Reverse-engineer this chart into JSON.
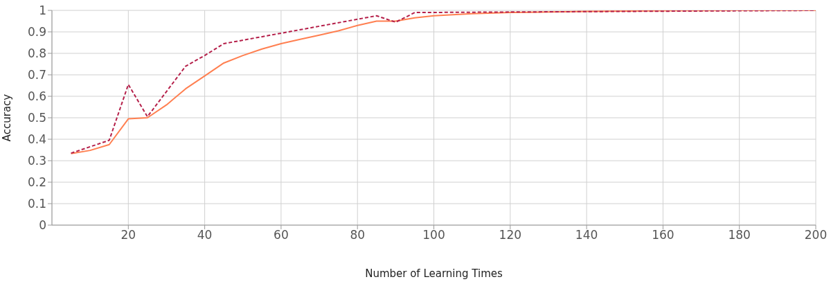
{
  "chart_data": {
    "type": "line",
    "xlabel": "Number of Learning Times",
    "ylabel": "Accuracy",
    "xlim": [
      0,
      200
    ],
    "xticks": [
      20,
      40,
      60,
      80,
      100,
      120,
      140,
      160,
      180,
      200
    ],
    "ylim": [
      0,
      1
    ],
    "yticks": [
      0,
      0.1,
      0.2,
      0.3,
      0.4,
      0.5,
      0.6,
      0.7,
      0.8,
      0.9,
      1
    ],
    "grid": true,
    "marker": "none",
    "series": [
      {
        "color": "#ff7f50",
        "line_style": "solid",
        "x": [
          5,
          10,
          15,
          20,
          25,
          30,
          35,
          40,
          45,
          50,
          55,
          60,
          65,
          70,
          75,
          80,
          85,
          90,
          95,
          100,
          110,
          120,
          140,
          160,
          180,
          200
        ],
        "values": [
          0.333,
          0.348,
          0.375,
          0.495,
          0.5,
          0.56,
          0.635,
          0.695,
          0.755,
          0.79,
          0.82,
          0.845,
          0.865,
          0.885,
          0.905,
          0.93,
          0.95,
          0.95,
          0.965,
          0.975,
          0.985,
          0.99,
          0.995,
          0.998,
          1,
          1
        ]
      },
      {
        "color": "#b5204a",
        "line_style": "dashed",
        "x": [
          5,
          15,
          20,
          25,
          35,
          40,
          45,
          85,
          90,
          95,
          200
        ],
        "values": [
          0.335,
          0.395,
          0.655,
          0.505,
          0.74,
          0.79,
          0.845,
          0.975,
          0.945,
          0.99,
          1
        ]
      }
    ]
  }
}
